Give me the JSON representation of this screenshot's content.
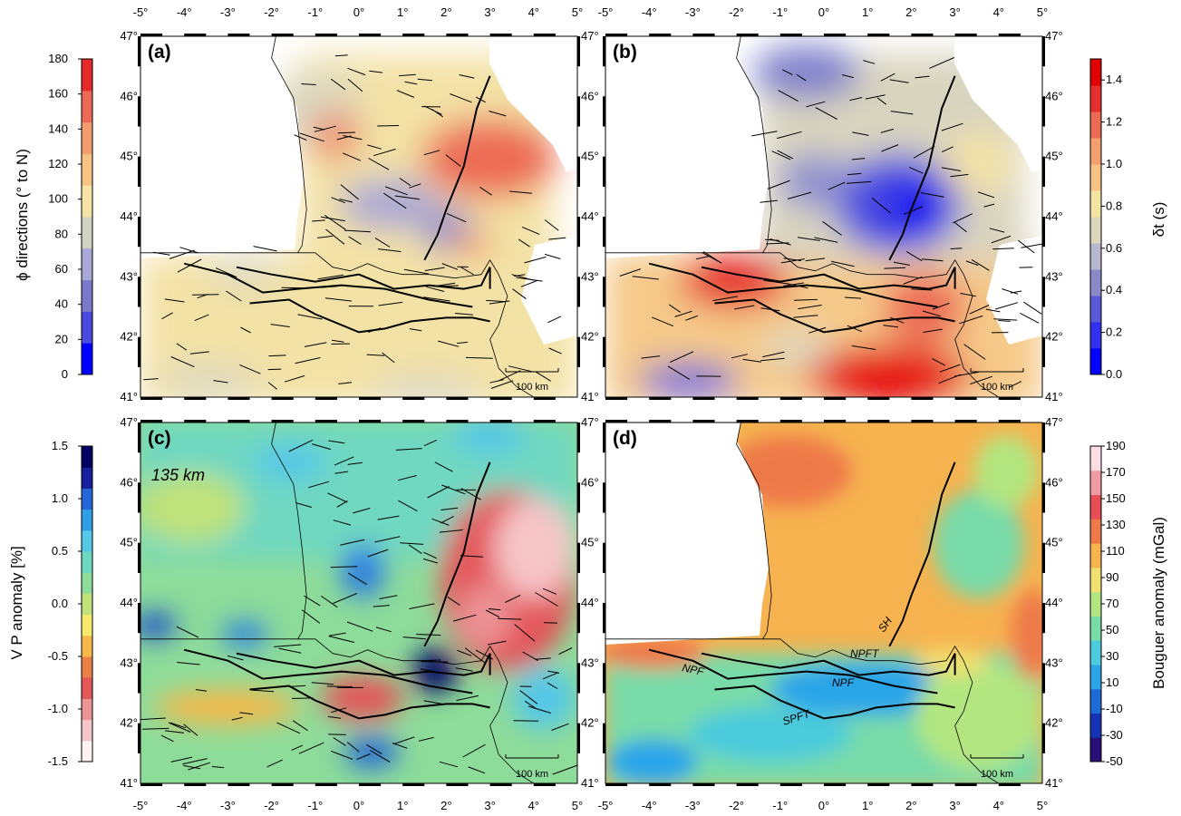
{
  "figure": {
    "lon_ticks": [
      "-5°",
      "-4°",
      "-3°",
      "-2°",
      "-1°",
      "0°",
      "1°",
      "2°",
      "3°",
      "4°",
      "5°"
    ],
    "lat_ticks": [
      "41°",
      "42°",
      "43°",
      "44°",
      "45°",
      "46°",
      "47°"
    ],
    "scale_bar_label": "100 km"
  },
  "chart_data": [
    {
      "panel": "(a)",
      "type": "heatmap",
      "quantity": "fast splitting direction with split-direction sticks",
      "colorbar": {
        "label": "ϕ directions (° to N)",
        "ticks": [
          "0",
          "20",
          "40",
          "60",
          "80",
          "100",
          "120",
          "140",
          "160",
          "180"
        ],
        "range": [
          0,
          180
        ],
        "colors": [
          "#0000ff",
          "#4a4ae0",
          "#7a7acb",
          "#a8a8d6",
          "#d3d3c2",
          "#f3e4a4",
          "#f7c383",
          "#f29e6e",
          "#ec6a55",
          "#e62a2a"
        ]
      },
      "xlim": [
        -5,
        5
      ],
      "ylim": [
        41,
        47
      ],
      "side": "left",
      "annotations": []
    },
    {
      "panel": "(b)",
      "type": "heatmap",
      "quantity": "delay time with split-direction sticks",
      "colorbar": {
        "label": "δt (s)",
        "ticks": [
          "0.0",
          "0.2",
          "0.4",
          "0.6",
          "0.8",
          "1.0",
          "1.2",
          "1.4"
        ],
        "range": [
          0,
          1.5
        ],
        "colors": [
          "#0000ff",
          "#3030ee",
          "#5a5ad9",
          "#8a8ac9",
          "#b7b7d0",
          "#dcd8bd",
          "#f3e4a4",
          "#f7c383",
          "#f29e6e",
          "#ec6a55",
          "#e63030",
          "#e10000"
        ]
      },
      "xlim": [
        -5,
        5
      ],
      "ylim": [
        41,
        47
      ],
      "side": "right",
      "annotations": []
    },
    {
      "panel": "(c)",
      "type": "heatmap",
      "quantity": "P-wave velocity anomaly at depth with split-direction sticks",
      "depth_label": "135 km",
      "colorbar": {
        "label": "V P anomaly [%]",
        "ticks": [
          "-1.5",
          "-1.0",
          "-0.5",
          "0.0",
          "0.5",
          "1.0",
          "1.5"
        ],
        "range": [
          -1.5,
          1.5
        ],
        "colors": [
          "#fff2f2",
          "#f6c5c8",
          "#ec9396",
          "#e3575a",
          "#ea7f47",
          "#f5b849",
          "#f4e96a",
          "#bfe27a",
          "#8edc9a",
          "#6fd8c1",
          "#55c7e8",
          "#2f9fe6",
          "#2566d6",
          "#17209a",
          "#000060"
        ]
      },
      "xlim": [
        -5,
        5
      ],
      "ylim": [
        41,
        47
      ],
      "side": "left",
      "annotations": []
    },
    {
      "panel": "(d)",
      "type": "heatmap",
      "quantity": "Bouguer gravity anomaly with major faults",
      "colorbar": {
        "label": "Bouguer anomaly (mGal)",
        "ticks": [
          "-50",
          "-30",
          "-10",
          "10",
          "30",
          "50",
          "70",
          "90",
          "110",
          "130",
          "150",
          "170",
          "190"
        ],
        "range": [
          -50,
          190
        ],
        "colors": [
          "#2a0f7a",
          "#1733b5",
          "#1e6ad6",
          "#2aa5e8",
          "#4ccbdc",
          "#78dba9",
          "#b3e680",
          "#f0e070",
          "#f6b350",
          "#ee7a4a",
          "#e84e55",
          "#f09aa6",
          "#fbdde3"
        ]
      },
      "xlim": [
        -5,
        5
      ],
      "ylim": [
        41,
        47
      ],
      "side": "right",
      "annotations": [
        "SH",
        "NPFT",
        "NPF",
        "NPF",
        "SPFT"
      ]
    }
  ]
}
